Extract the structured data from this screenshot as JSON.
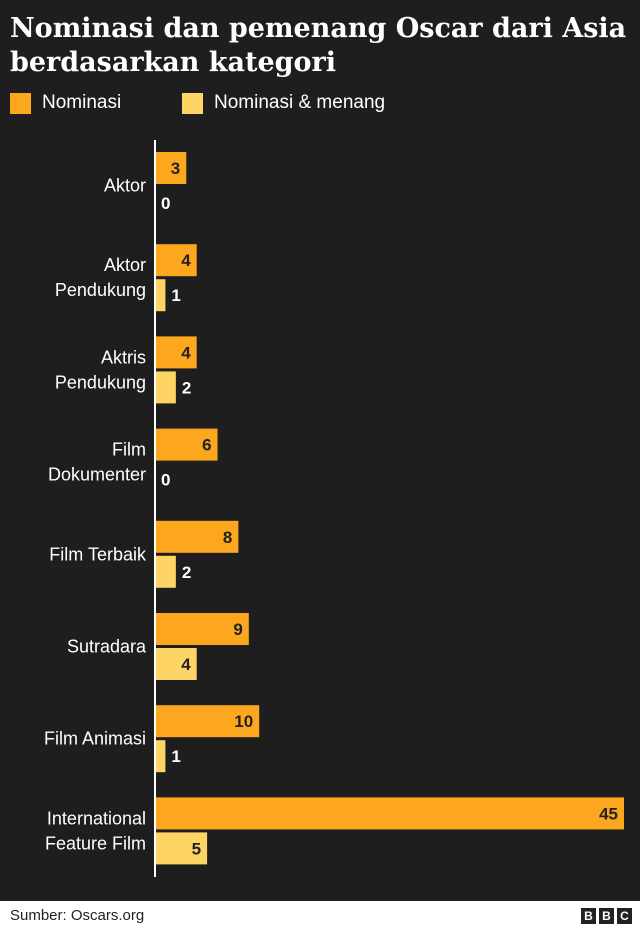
{
  "title_lines": [
    "Nominasi dan pemenang Oscar dari Asia",
    "berdasarkan kategori"
  ],
  "colors": {
    "nominasi": "#fca71d",
    "menang": "#fed465",
    "background": "#1e1e1e"
  },
  "source": "Sumber: Oscars.org",
  "logo": [
    "B",
    "B",
    "C"
  ],
  "chart_data": {
    "type": "bar",
    "orientation": "horizontal",
    "title": "Nominasi dan pemenang Oscar dari Asia berdasarkan kategori",
    "legend_placement": "top-left",
    "grid": false,
    "xlim": [
      0,
      45
    ],
    "categories": [
      [
        "Aktor"
      ],
      [
        "Aktor",
        "Pendukung"
      ],
      [
        "Aktris",
        "Pendukung"
      ],
      [
        "Film",
        "Dokumenter"
      ],
      [
        "Film Terbaik"
      ],
      [
        "Sutradara"
      ],
      [
        "Film Animasi"
      ],
      [
        "International",
        "Feature Film"
      ]
    ],
    "series": [
      {
        "name": "Nominasi",
        "values": [
          3,
          4,
          4,
          6,
          8,
          9,
          10,
          45
        ]
      },
      {
        "name": "Nominasi & menang",
        "values": [
          0,
          1,
          2,
          0,
          2,
          4,
          1,
          5
        ]
      }
    ]
  }
}
